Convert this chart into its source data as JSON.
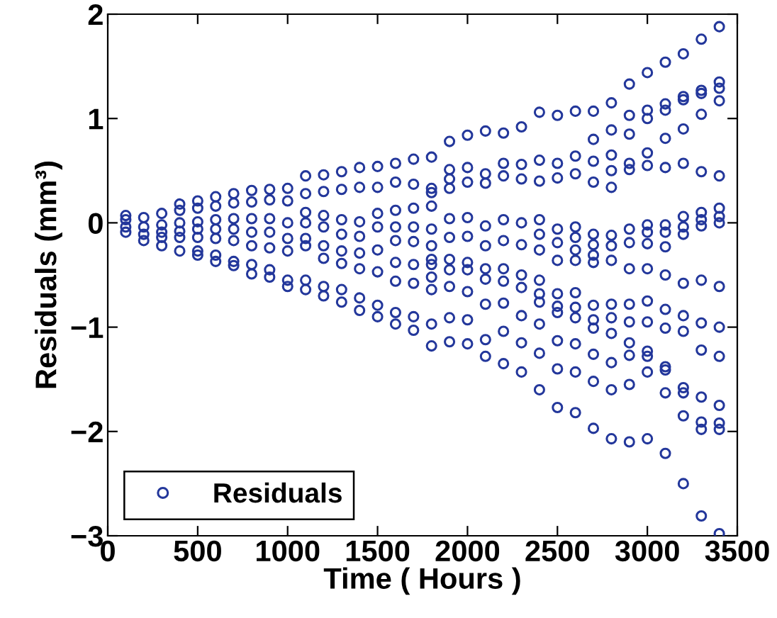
{
  "chart_data": {
    "type": "scatter",
    "xlabel": "Time ( Hours )",
    "ylabel": "Residuals (mm³)",
    "xlim": [
      0,
      3500
    ],
    "xticks": [
      0,
      500,
      1000,
      1500,
      2000,
      2500,
      3000,
      3500
    ],
    "ylim": [
      -3,
      2
    ],
    "yticks": [
      -3,
      -2,
      -1,
      0,
      1,
      2
    ],
    "grid": false,
    "legend": "bottom left",
    "marker": "circle",
    "series": [
      {
        "name": "Residuals",
        "color": "#23379b",
        "x": [
          100,
          100,
          100,
          100,
          200,
          200,
          200,
          200,
          300,
          300,
          300,
          300,
          300,
          400,
          400,
          400,
          400,
          400,
          400,
          500,
          500,
          500,
          500,
          500,
          500,
          500,
          600,
          600,
          600,
          600,
          600,
          600,
          600,
          700,
          700,
          700,
          700,
          700,
          700,
          700,
          800,
          800,
          800,
          800,
          800,
          800,
          800,
          900,
          900,
          900,
          900,
          900,
          900,
          900,
          1000,
          1000,
          1000,
          1000,
          1000,
          1000,
          1000,
          1100,
          1100,
          1100,
          1100,
          1100,
          1100,
          1100,
          1100,
          1200,
          1200,
          1200,
          1200,
          1200,
          1200,
          1200,
          1200,
          1300,
          1300,
          1300,
          1300,
          1300,
          1300,
          1300,
          1300,
          1400,
          1400,
          1400,
          1400,
          1400,
          1400,
          1400,
          1400,
          1500,
          1500,
          1500,
          1500,
          1500,
          1500,
          1500,
          1500,
          1600,
          1600,
          1600,
          1600,
          1600,
          1600,
          1600,
          1600,
          1600,
          1700,
          1700,
          1700,
          1700,
          1700,
          1700,
          1700,
          1700,
          1700,
          1800,
          1800,
          1800,
          1800,
          1800,
          1800,
          1800,
          1800,
          1800,
          1800,
          1800,
          1800,
          1900,
          1900,
          1900,
          1900,
          1900,
          1900,
          1900,
          1900,
          1900,
          1900,
          1900,
          2000,
          2000,
          2000,
          2000,
          2000,
          2000,
          2000,
          2000,
          2000,
          2000,
          2100,
          2100,
          2100,
          2100,
          2100,
          2100,
          2100,
          2100,
          2100,
          2100,
          2200,
          2200,
          2200,
          2200,
          2200,
          2200,
          2200,
          2200,
          2200,
          2200,
          2300,
          2300,
          2300,
          2300,
          2300,
          2300,
          2300,
          2300,
          2300,
          2300,
          2400,
          2400,
          2400,
          2400,
          2400,
          2400,
          2400,
          2400,
          2400,
          2400,
          2400,
          2400,
          2500,
          2500,
          2500,
          2500,
          2500,
          2500,
          2500,
          2500,
          2500,
          2500,
          2500,
          2500,
          2600,
          2600,
          2600,
          2600,
          2600,
          2600,
          2600,
          2600,
          2600,
          2600,
          2600,
          2600,
          2600,
          2700,
          2700,
          2700,
          2700,
          2700,
          2700,
          2700,
          2700,
          2700,
          2700,
          2700,
          2700,
          2700,
          2700,
          2800,
          2800,
          2800,
          2800,
          2800,
          2800,
          2800,
          2800,
          2800,
          2800,
          2800,
          2800,
          2800,
          2800,
          2900,
          2900,
          2900,
          2900,
          2900,
          2900,
          2900,
          2900,
          2900,
          2900,
          2900,
          2900,
          2900,
          2900,
          3000,
          3000,
          3000,
          3000,
          3000,
          3000,
          3000,
          3000,
          3000,
          3000,
          3000,
          3000,
          3000,
          3000,
          3000,
          3100,
          3100,
          3100,
          3100,
          3100,
          3100,
          3100,
          3100,
          3100,
          3100,
          3100,
          3100,
          3100,
          3100,
          3100,
          3200,
          3200,
          3200,
          3200,
          3200,
          3200,
          3200,
          3200,
          3200,
          3200,
          3200,
          3200,
          3200,
          3200,
          3200,
          3300,
          3300,
          3300,
          3300,
          3300,
          3300,
          3300,
          3300,
          3300,
          3300,
          3300,
          3300,
          3300,
          3300,
          3300,
          3400,
          3400,
          3400,
          3400,
          3400,
          3400,
          3400,
          3400,
          3400,
          3400,
          3400,
          3400,
          3400,
          3400,
          3400
        ],
        "values": [
          0.07,
          0.03,
          -0.04,
          -0.09,
          0.05,
          -0.04,
          -0.11,
          -0.17,
          0.09,
          -0.02,
          -0.09,
          -0.14,
          -0.22,
          0.18,
          0.12,
          0.0,
          -0.08,
          -0.14,
          -0.27,
          0.21,
          0.14,
          0.01,
          -0.06,
          -0.14,
          -0.27,
          -0.31,
          0.25,
          0.16,
          0.03,
          -0.06,
          -0.15,
          -0.31,
          -0.37,
          0.28,
          0.19,
          0.04,
          -0.06,
          -0.17,
          -0.37,
          -0.41,
          0.31,
          0.2,
          0.04,
          -0.09,
          -0.22,
          -0.4,
          -0.49,
          0.32,
          0.22,
          0.04,
          -0.09,
          -0.24,
          -0.45,
          -0.52,
          0.33,
          0.21,
          0.0,
          -0.15,
          -0.27,
          -0.55,
          -0.61,
          0.45,
          0.28,
          0.1,
          0.0,
          -0.15,
          -0.22,
          -0.55,
          -0.64,
          0.46,
          0.3,
          0.07,
          -0.04,
          -0.22,
          -0.34,
          -0.61,
          -0.7,
          0.49,
          0.32,
          0.03,
          -0.11,
          -0.27,
          -0.39,
          -0.64,
          -0.76,
          0.53,
          0.34,
          0.01,
          -0.13,
          -0.29,
          -0.44,
          -0.72,
          -0.84,
          0.54,
          0.34,
          0.09,
          -0.04,
          -0.26,
          -0.47,
          -0.79,
          -0.9,
          0.57,
          0.39,
          0.12,
          -0.04,
          -0.17,
          -0.38,
          -0.56,
          -0.86,
          -0.97,
          0.61,
          0.37,
          0.14,
          -0.04,
          -0.18,
          -0.4,
          -0.58,
          -0.9,
          -1.03,
          0.63,
          0.33,
          0.29,
          0.16,
          -0.06,
          -0.22,
          -0.35,
          -0.4,
          -0.52,
          -0.64,
          -0.97,
          -1.18,
          0.78,
          0.51,
          0.42,
          0.33,
          0.04,
          -0.14,
          -0.35,
          -0.45,
          -0.61,
          -0.91,
          -1.14,
          0.84,
          0.53,
          0.39,
          0.05,
          -0.13,
          -0.38,
          -0.45,
          -0.66,
          -0.93,
          -1.16,
          0.88,
          0.47,
          0.38,
          -0.03,
          -0.22,
          -0.44,
          -0.54,
          -0.78,
          -1.12,
          -1.28,
          0.86,
          0.57,
          0.45,
          0.03,
          -0.17,
          -0.44,
          -0.56,
          -0.77,
          -1.04,
          -1.35,
          0.92,
          0.56,
          0.42,
          0.0,
          -0.21,
          -0.5,
          -0.62,
          -0.89,
          -1.15,
          -1.43,
          1.06,
          0.6,
          0.4,
          0.03,
          -0.11,
          -0.26,
          -0.55,
          -0.68,
          -0.76,
          -0.97,
          -1.25,
          -1.6,
          1.03,
          0.57,
          0.43,
          -0.06,
          -0.19,
          -0.36,
          -0.68,
          -0.8,
          -0.86,
          -1.13,
          -1.4,
          -1.77,
          1.07,
          0.64,
          0.47,
          -0.04,
          -0.14,
          -0.26,
          -0.36,
          -0.67,
          -0.81,
          -0.91,
          -1.16,
          -1.43,
          -1.82,
          1.07,
          0.8,
          0.59,
          0.39,
          -0.11,
          -0.21,
          -0.31,
          -0.38,
          -0.79,
          -0.93,
          -1.01,
          -1.26,
          -1.52,
          -1.97,
          1.15,
          0.89,
          0.65,
          0.5,
          0.34,
          -0.12,
          -0.22,
          -0.36,
          -0.78,
          -0.91,
          -1.06,
          -1.34,
          -1.6,
          -2.07,
          1.33,
          1.03,
          0.85,
          0.57,
          0.51,
          -0.06,
          -0.19,
          -0.44,
          -0.78,
          -0.95,
          -1.15,
          -1.27,
          -1.55,
          -2.1,
          1.44,
          1.08,
          1.0,
          0.67,
          0.55,
          -0.02,
          -0.09,
          -0.2,
          -0.44,
          -0.75,
          -0.95,
          -1.23,
          -1.28,
          -1.43,
          -2.07,
          1.54,
          1.14,
          1.08,
          0.81,
          0.53,
          -0.02,
          -0.09,
          -0.23,
          -0.5,
          -0.83,
          -1.01,
          -1.38,
          -1.41,
          -1.63,
          -2.21,
          1.62,
          1.21,
          1.18,
          0.9,
          0.57,
          0.06,
          -0.04,
          -0.11,
          -0.58,
          -0.89,
          -1.04,
          -1.58,
          -1.63,
          -1.85,
          -2.5,
          1.76,
          1.27,
          1.24,
          1.04,
          0.49,
          0.1,
          0.03,
          -0.03,
          -0.55,
          -0.96,
          -1.22,
          -1.67,
          -1.91,
          -1.98,
          -2.81,
          1.88,
          1.35,
          1.29,
          1.17,
          0.45,
          0.14,
          0.06,
          0.0,
          -0.61,
          -1.0,
          -1.28,
          -1.75,
          -1.92,
          -1.98,
          -2.98
        ]
      }
    ]
  }
}
